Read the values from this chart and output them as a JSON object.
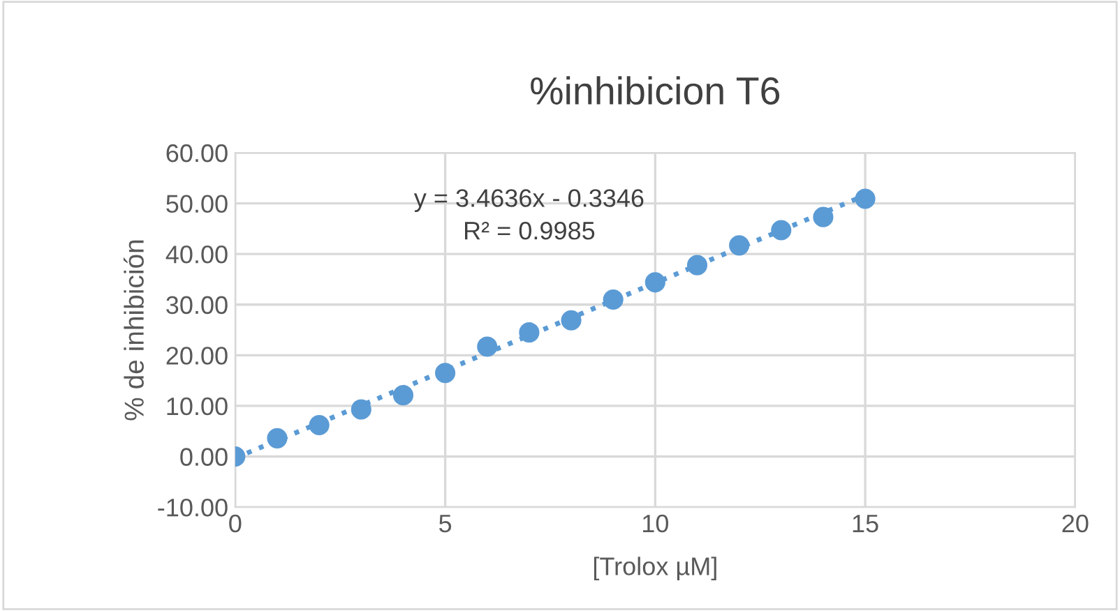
{
  "chart_data": {
    "type": "scatter",
    "title": "%inhibicion T6",
    "xlabel": "[Trolox µM]",
    "ylabel": "% de inhibición",
    "x": [
      0,
      1,
      2,
      3,
      4,
      5,
      6,
      7,
      8,
      9,
      10,
      11,
      12,
      13,
      14,
      15
    ],
    "series": [
      {
        "color": "#5b9bd5",
        "marker": "circle",
        "values": [
          0,
          3.6,
          6.2,
          9.3,
          12.1,
          16.5,
          21.7,
          24.5,
          26.9,
          31.0,
          34.4,
          37.8,
          41.7,
          44.7,
          47.3,
          50.9
        ]
      },
      {
        "type": "line",
        "color": "#5b9bd5",
        "line_style": "dotted",
        "marker": "none",
        "x": [
          0,
          15
        ],
        "values": [
          -0.3,
          51.6
        ]
      }
    ],
    "annotations": [
      "y = 3.4636x - 0.3346\nR² = 0.9985"
    ],
    "xlim": [
      0,
      20
    ],
    "xticks": [
      0,
      5,
      10,
      15,
      20
    ],
    "ylim": [
      -10,
      60
    ],
    "yticks": [
      {
        "value": -10,
        "label": "-10.00"
      },
      {
        "value": 0,
        "label": "0.00"
      },
      {
        "value": 10,
        "label": "10.00"
      },
      {
        "value": 20,
        "label": "20.00"
      },
      {
        "value": 30,
        "label": "30.00"
      },
      {
        "value": 40,
        "label": "40.00"
      },
      {
        "value": 50,
        "label": "50.00"
      },
      {
        "value": 60,
        "label": "60.00"
      }
    ],
    "grid": true,
    "legend": false
  }
}
